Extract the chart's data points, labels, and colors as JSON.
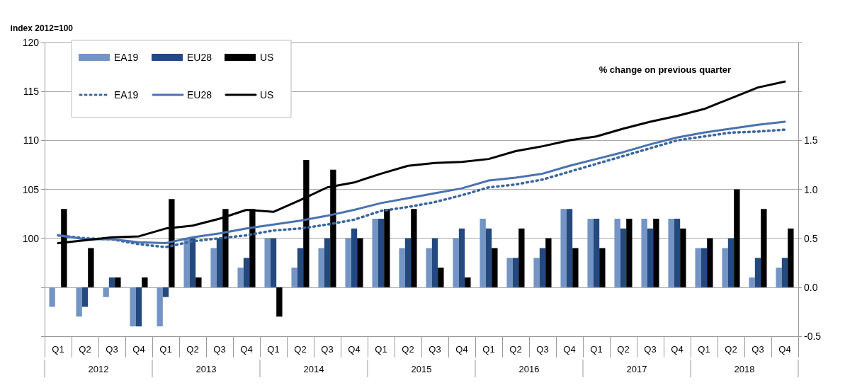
{
  "chart_data": {
    "type": "bar",
    "ylabel": "index 2012=100",
    "y2label": "% change on previous quarter",
    "categories": [
      "Q1",
      "Q2",
      "Q3",
      "Q4",
      "Q1",
      "Q2",
      "Q3",
      "Q4",
      "Q1",
      "Q2",
      "Q3",
      "Q4",
      "Q1",
      "Q2",
      "Q3",
      "Q4",
      "Q1",
      "Q2",
      "Q3",
      "Q4",
      "Q1",
      "Q2",
      "Q3",
      "Q4",
      "Q1",
      "Q2",
      "Q3",
      "Q4"
    ],
    "annotations": [
      "2012",
      "2013",
      "2014",
      "2015",
      "2016",
      "2017",
      "2018"
    ],
    "ylim": [
      90,
      120
    ],
    "yticks": [
      {
        "value": 90,
        "label": null
      },
      {
        "value": 95,
        "label": null
      },
      100,
      105,
      110,
      115,
      120
    ],
    "y2lim": [
      -0.5,
      2.5
    ],
    "y2ticks": [
      -0.5,
      {
        "value": 0,
        "label": "0.0"
      },
      0.5,
      {
        "value": 1,
        "label": "1.0"
      },
      1.5,
      {
        "value": 2.0,
        "label": null
      },
      {
        "value": 2.5,
        "label": null
      }
    ],
    "grid": "y",
    "legend": "top left",
    "marker": "none",
    "series": [
      {
        "name": "EA19",
        "axis": "y2",
        "color": "#7394c5",
        "values": [
          -0.2,
          -0.3,
          -0.1,
          -0.4,
          -0.4,
          0.5,
          0.4,
          0.2,
          0.5,
          0.2,
          0.4,
          0.5,
          0.7,
          0.4,
          0.4,
          0.5,
          0.7,
          0.3,
          0.3,
          0.8,
          0.7,
          0.7,
          0.7,
          0.7,
          0.4,
          0.4,
          0.1,
          0.2
        ]
      },
      {
        "name": "EU28",
        "axis": "y2",
        "color": "#23497e",
        "values": [
          0,
          -0.2,
          0.1,
          -0.4,
          -0.1,
          0.5,
          0.5,
          0.3,
          0.5,
          0.4,
          0.5,
          0.6,
          0.7,
          0.5,
          0.5,
          0.6,
          0.6,
          0.3,
          0.4,
          0.8,
          0.7,
          0.6,
          0.6,
          0.7,
          0.4,
          0.5,
          0.3,
          0.3
        ]
      },
      {
        "name": "US",
        "axis": "y2",
        "color": "#000000",
        "values": [
          0.8,
          0.4,
          0.1,
          0.1,
          0.9,
          0.1,
          0.8,
          0.8,
          -0.3,
          1.3,
          1.2,
          0.5,
          0.8,
          0.8,
          0.2,
          0.1,
          0.4,
          0.6,
          0.5,
          0.4,
          0.4,
          0.7,
          0.7,
          0.6,
          0.5,
          1.0,
          0.8,
          0.6
        ]
      },
      {
        "name": "EA19",
        "type": "line",
        "line_style": "dotted",
        "color": "#3a66a0",
        "values": [
          100.3,
          100.0,
          99.9,
          99.4,
          99.1,
          99.7,
          100.0,
          100.3,
          100.8,
          101.0,
          101.4,
          101.9,
          102.8,
          103.2,
          103.7,
          104.4,
          105.2,
          105.5,
          106.0,
          106.8,
          107.6,
          108.4,
          109.2,
          110.0,
          110.4,
          110.8,
          110.9,
          111.1
        ]
      },
      {
        "name": "EU28",
        "type": "line",
        "line_style": "solid",
        "color": "#4a72b0",
        "values": [
          100.3,
          99.9,
          99.9,
          99.6,
          99.5,
          100.1,
          100.5,
          101.0,
          101.4,
          101.8,
          102.3,
          102.9,
          103.6,
          104.1,
          104.6,
          105.1,
          105.9,
          106.2,
          106.6,
          107.4,
          108.1,
          108.8,
          109.6,
          110.3,
          110.8,
          111.2,
          111.6,
          111.9
        ]
      },
      {
        "name": "US",
        "type": "line",
        "line_style": "solid",
        "color": "#000000",
        "values": [
          99.5,
          99.8,
          100.1,
          100.2,
          101.0,
          101.3,
          102.0,
          102.9,
          102.7,
          103.9,
          105.2,
          105.7,
          106.6,
          107.4,
          107.7,
          107.8,
          108.1,
          108.9,
          109.4,
          110.0,
          110.4,
          111.2,
          111.9,
          112.5,
          113.2,
          114.3,
          115.4,
          116.0
        ]
      }
    ]
  }
}
